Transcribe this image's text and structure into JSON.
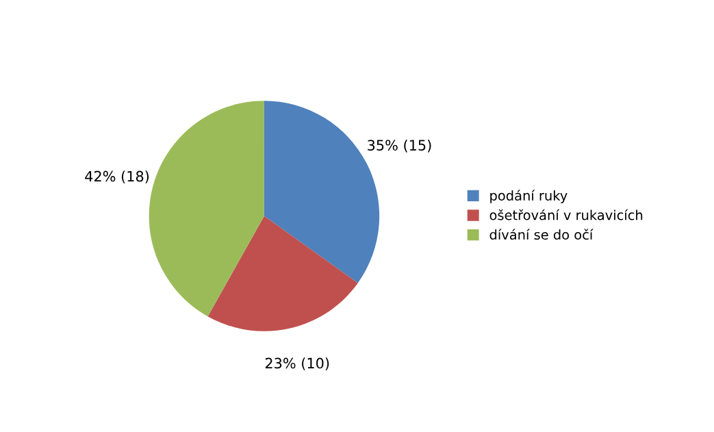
{
  "chart_data": {
    "type": "pie",
    "categories": [
      "podání ruky",
      "ošetřování v rukavicích",
      "dívání se do očí"
    ],
    "values": [
      15,
      10,
      18
    ],
    "colors": [
      "#4f81bd",
      "#c0504d",
      "#9bbb59"
    ],
    "value_labels": [
      "35% (15)",
      "23% (10)",
      "42% (18)"
    ],
    "legend": "right"
  }
}
